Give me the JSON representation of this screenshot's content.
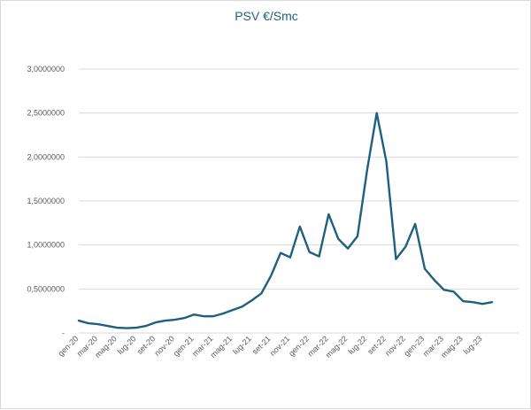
{
  "chart_data": {
    "type": "line",
    "title": "PSV €/Smc",
    "xlabel": "",
    "ylabel": "",
    "ylim": [
      0,
      3.0
    ],
    "grid": true,
    "legend": "none",
    "y_ticks": [
      {
        "value": 0,
        "label": "-"
      },
      {
        "value": 0.5,
        "label": "0,5000000"
      },
      {
        "value": 1.0,
        "label": "1,0000000"
      },
      {
        "value": 1.5,
        "label": "1,5000000"
      },
      {
        "value": 2.0,
        "label": "2,0000000"
      },
      {
        "value": 2.5,
        "label": "2,5000000"
      },
      {
        "value": 3.0,
        "label": "3,0000000"
      }
    ],
    "x_tick_labels": [
      "gen-20",
      "mar-20",
      "mag-20",
      "lug-20",
      "set-20",
      "nov-20",
      "gen-21",
      "mar-21",
      "mag-21",
      "lug-21",
      "set-21",
      "nov-21",
      "gen-22",
      "mar-22",
      "mag-22",
      "lug-22",
      "set-22",
      "nov-22",
      "gen-23",
      "mar-23",
      "mag-23",
      "lug-23"
    ],
    "categories": [
      "gen-20",
      "feb-20",
      "mar-20",
      "apr-20",
      "mag-20",
      "giu-20",
      "lug-20",
      "ago-20",
      "set-20",
      "ott-20",
      "nov-20",
      "dic-20",
      "gen-21",
      "feb-21",
      "mar-21",
      "apr-21",
      "mag-21",
      "giu-21",
      "lug-21",
      "ago-21",
      "set-21",
      "ott-21",
      "nov-21",
      "dic-21",
      "gen-22",
      "feb-22",
      "mar-22",
      "apr-22",
      "mag-22",
      "giu-22",
      "lug-22",
      "ago-22",
      "set-22",
      "ott-22",
      "nov-22",
      "dic-22",
      "gen-23",
      "feb-23",
      "mar-23",
      "apr-23",
      "mag-23",
      "giu-23",
      "lug-23",
      "ago-23"
    ],
    "series": [
      {
        "color": "#1f5f7f",
        "values": [
          0.14,
          0.11,
          0.1,
          0.08,
          0.06,
          0.055,
          0.06,
          0.08,
          0.12,
          0.14,
          0.15,
          0.17,
          0.21,
          0.19,
          0.19,
          0.22,
          0.26,
          0.3,
          0.37,
          0.45,
          0.65,
          0.91,
          0.86,
          1.21,
          0.92,
          0.87,
          1.35,
          1.07,
          0.96,
          1.1,
          1.85,
          2.5,
          1.95,
          0.84,
          0.98,
          1.24,
          0.73,
          0.6,
          0.49,
          0.47,
          0.36,
          0.35,
          0.33,
          0.35
        ]
      }
    ]
  }
}
